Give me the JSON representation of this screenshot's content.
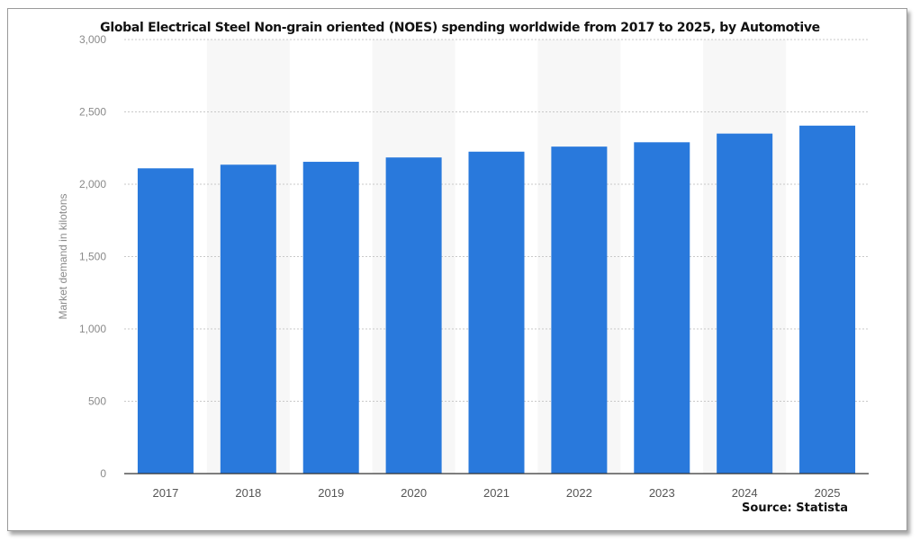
{
  "chart_data": {
    "type": "bar",
    "title": "Global Electrical Steel Non-grain oriented (NOES) spending worldwide from 2017 to 2025, by Automotive",
    "xlabel": "",
    "ylabel": "Market demand in kilotons",
    "categories": [
      "2017",
      "2018",
      "2019",
      "2020",
      "2021",
      "2022",
      "2023",
      "2024",
      "2025"
    ],
    "values": [
      2110,
      2135,
      2155,
      2185,
      2225,
      2260,
      2290,
      2350,
      2405
    ],
    "ylim": [
      0,
      3000
    ],
    "yticks": [
      0,
      500,
      1000,
      1500,
      2000,
      2500,
      3000
    ],
    "ytick_labels": [
      "0",
      "500",
      "1,000",
      "1,500",
      "2,000",
      "2,500",
      "3,000"
    ],
    "grid": true,
    "bar_color": "#2979dc",
    "alt_band_color": "#f7f7f7",
    "source": "Source: Statista"
  }
}
